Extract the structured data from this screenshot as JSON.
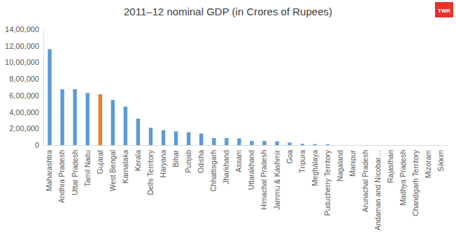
{
  "chart_data": {
    "type": "bar",
    "title": "2011–12 nominal GDP (in Crores of Rupees)",
    "annotations": [
      "TWR"
    ],
    "categories": [
      "Maharashtra",
      "Andhra Pradesh",
      "Uttar Pradesh",
      "Tamil Nadu",
      "Gujarat",
      "West Bengal",
      "Karnataka",
      "Kerala",
      "Delhi Territory",
      "Haryana",
      "Bihar",
      "Punjab",
      "Odisha",
      "Chhattisgarh",
      "Jharkhand",
      "Assam",
      "Uttarakhand",
      "Himachal Pradesh",
      "Jammu & Kashmir",
      "Goa",
      "Tripura",
      "Meghalaya",
      "Puducherry Territory",
      "Nagaland",
      "Manipur",
      "Arunachal Pradesh",
      "Andaman and Nicobar…",
      "Rajasthan",
      "Madhya Pradesh",
      "Chandigarh Territory",
      "Mizoram",
      "Sikkim"
    ],
    "values": [
      1160000,
      675000,
      675000,
      630000,
      615000,
      545000,
      465000,
      320000,
      210000,
      180000,
      165000,
      155000,
      140000,
      85000,
      85000,
      80000,
      50000,
      50000,
      45000,
      30000,
      15000,
      12000,
      10000,
      null,
      null,
      null,
      null,
      null,
      null,
      null,
      null,
      null
    ],
    "colors": [
      "#5b9bd5",
      "#5b9bd5",
      "#5b9bd5",
      "#5b9bd5",
      "#ed7d31",
      "#5b9bd5",
      "#5b9bd5",
      "#5b9bd5",
      "#5b9bd5",
      "#5b9bd5",
      "#5b9bd5",
      "#5b9bd5",
      "#5b9bd5",
      "#5b9bd5",
      "#5b9bd5",
      "#5b9bd5",
      "#5b9bd5",
      "#5b9bd5",
      "#5b9bd5",
      "#5b9bd5",
      "#5b9bd5",
      "#5b9bd5",
      "#5b9bd5",
      "#5b9bd5",
      "#5b9bd5",
      "#5b9bd5",
      "#5b9bd5",
      "#5b9bd5",
      "#5b9bd5",
      "#5b9bd5",
      "#5b9bd5",
      "#5b9bd5"
    ],
    "ylim": [
      0,
      1400000
    ],
    "yticks": [
      0,
      {
        "value": 200000,
        "label": "2,00,000"
      },
      {
        "value": 400000,
        "label": "4,00,000"
      },
      {
        "value": 600000,
        "label": "6,00,000"
      },
      {
        "value": 800000,
        "label": "8,00,000"
      },
      {
        "value": 1000000,
        "label": "10,00,000"
      },
      {
        "value": 1200000,
        "label": "12,00,000"
      },
      {
        "value": 1400000,
        "label": "14,00,000"
      }
    ],
    "grid": false
  }
}
